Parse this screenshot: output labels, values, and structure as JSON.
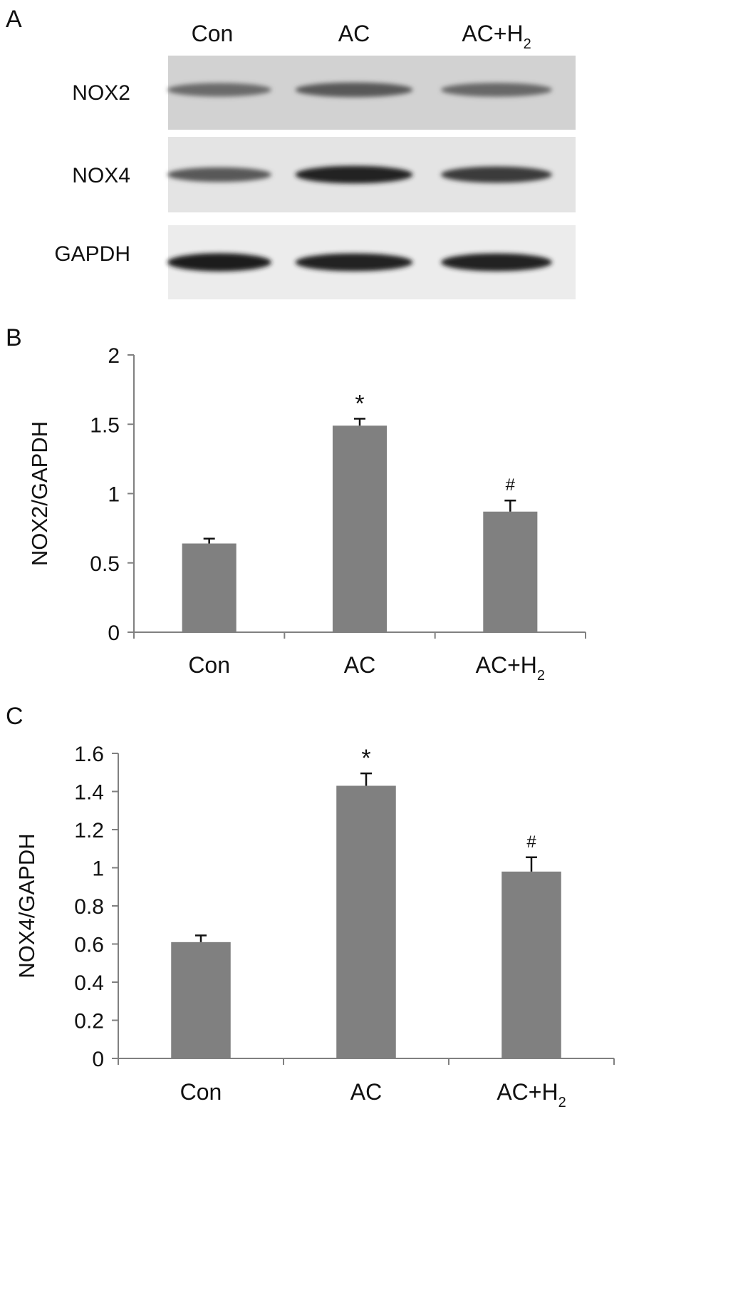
{
  "panels": {
    "a": {
      "letter": "A",
      "lanes": [
        {
          "main": "Con",
          "sub": ""
        },
        {
          "main": "AC",
          "sub": ""
        },
        {
          "main": "AC+H",
          "sub": "2"
        }
      ],
      "blots": [
        {
          "label": "NOX2",
          "background": "#d2d2d2",
          "intensities": [
            0.42,
            0.55,
            0.45
          ]
        },
        {
          "label": "NOX4",
          "background": "#e4e4e4",
          "intensities": [
            0.55,
            0.9,
            0.75
          ]
        },
        {
          "label": "GAPDH",
          "background": "#ececec",
          "intensities": [
            0.95,
            0.92,
            0.92
          ]
        }
      ]
    },
    "b": {
      "letter": "B"
    },
    "c": {
      "letter": "C"
    }
  },
  "chart_data": [
    {
      "type": "bar",
      "categories": [
        "Con",
        "AC",
        "AC+H2"
      ],
      "category_labels": [
        {
          "main": "Con",
          "sub": ""
        },
        {
          "main": "AC",
          "sub": ""
        },
        {
          "main": "AC+H",
          "sub": "2"
        }
      ],
      "values": [
        0.64,
        1.49,
        0.87
      ],
      "errors": [
        0.035,
        0.05,
        0.08
      ],
      "annotations": [
        "",
        "*",
        "#"
      ],
      "ylabel": "NOX2/GAPDH",
      "xlabel": "",
      "ylim": [
        0,
        2
      ],
      "yticks": [
        0,
        0.5,
        1,
        1.5,
        2
      ],
      "ytick_labels": [
        "0",
        "0.5",
        "1",
        "1.5",
        "2"
      ],
      "bar_color": "#808080",
      "grid": false,
      "legend": "none"
    },
    {
      "type": "bar",
      "categories": [
        "Con",
        "AC",
        "AC+H2"
      ],
      "category_labels": [
        {
          "main": "Con",
          "sub": ""
        },
        {
          "main": "AC",
          "sub": ""
        },
        {
          "main": "AC+H",
          "sub": "2"
        }
      ],
      "values": [
        0.61,
        1.43,
        0.98
      ],
      "errors": [
        0.035,
        0.065,
        0.075
      ],
      "annotations": [
        "",
        "*",
        "#"
      ],
      "ylabel": "NOX4/GAPDH",
      "xlabel": "",
      "ylim": [
        0,
        1.6
      ],
      "yticks": [
        0,
        0.2,
        0.4,
        0.6,
        0.8,
        1,
        1.2,
        1.4,
        1.6
      ],
      "ytick_labels": [
        "0",
        "0.2",
        "0.4",
        "0.6",
        "0.8",
        "1",
        "1.2",
        "1.4",
        "1.6"
      ],
      "bar_color": "#808080",
      "grid": false,
      "legend": "none"
    }
  ]
}
